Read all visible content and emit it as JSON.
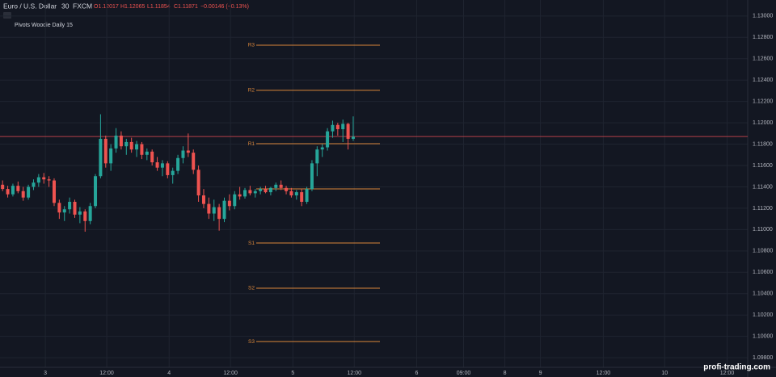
{
  "chart_data": {
    "type": "candlestick",
    "symbol": "Euro / U.S. Dollar",
    "interval": "30",
    "source": "FXCM",
    "quote": [
      "O1.12017",
      "H1.12065",
      "L1.11854",
      "C1.11871",
      "−0.00146 (−0.13%)"
    ],
    "indicator": "Pivots Woodie Daily 15",
    "watermark": "profi-trading.com",
    "up_color": "#26a69a",
    "down_color": "#ef5350",
    "pivot_color": "#d9863a",
    "last_color": "#b5404a",
    "last_price": 1.11871,
    "xlim": [
      0,
      145
    ],
    "ylim": [
      1.0971,
      1.1315
    ],
    "grid": true,
    "yticks": [
      {
        "value": 1.098,
        "label": "1.09800"
      },
      {
        "value": 1.1,
        "label": "1.10000"
      },
      {
        "value": 1.102,
        "label": "1.10200"
      },
      {
        "value": 1.104,
        "label": "1.10400"
      },
      {
        "value": 1.106,
        "label": "1.10600"
      },
      {
        "value": 1.108,
        "label": "1.10800"
      },
      {
        "value": 1.11,
        "label": "1.11000"
      },
      {
        "value": 1.112,
        "label": "1.11200"
      },
      {
        "value": 1.114,
        "label": "1.11400"
      },
      {
        "value": 1.116,
        "label": "1.11600"
      },
      {
        "value": 1.118,
        "label": "1.11800"
      },
      {
        "value": 1.12,
        "label": "1.12000"
      },
      {
        "value": 1.122,
        "label": "1.12200"
      },
      {
        "value": 1.124,
        "label": "1.12400"
      },
      {
        "value": 1.126,
        "label": "1.12600"
      },
      {
        "value": 1.128,
        "label": "1.12800"
      },
      {
        "value": 1.13,
        "label": "1.13000"
      }
    ],
    "xticks": [
      {
        "value": 8.8,
        "label": "3"
      },
      {
        "value": 20.7,
        "label": "12:00"
      },
      {
        "value": 32.8,
        "label": "4"
      },
      {
        "value": 44.7,
        "label": "12:00"
      },
      {
        "value": 56.8,
        "label": "5"
      },
      {
        "value": 68.7,
        "label": "12:00"
      },
      {
        "value": 80.8,
        "label": "6"
      },
      {
        "value": 89.9,
        "label": "09:00"
      },
      {
        "value": 97.9,
        "label": "8"
      },
      {
        "value": 104.8,
        "label": "9"
      },
      {
        "value": 117,
        "label": "12:00"
      },
      {
        "value": 128.9,
        "label": "10"
      },
      {
        "value": 141,
        "label": "12:00"
      }
    ],
    "pivots": [
      {
        "name": "R3",
        "value": 1.12727
      },
      {
        "name": "R2",
        "value": 1.12304
      },
      {
        "name": "R1",
        "value": 1.11804
      },
      {
        "name": null,
        "value": 1.11381
      },
      {
        "name": "S1",
        "value": 1.10874
      },
      {
        "name": "S2",
        "value": 1.10451
      },
      {
        "name": "S3",
        "value": 1.09951
      }
    ],
    "x": [
      0.5,
      1.5,
      2.5,
      3.5,
      4.5,
      5.5,
      6.5,
      7.5,
      8.5,
      9.5,
      10.5,
      11.5,
      12.5,
      13.5,
      14.5,
      15.5,
      16.5,
      17.5,
      18.5,
      19.5,
      20.5,
      21.5,
      22.5,
      23.5,
      24.5,
      25.5,
      26.5,
      27.5,
      28.5,
      29.5,
      30.5,
      31.5,
      32.5,
      33.5,
      34.5,
      35.5,
      36.5,
      37.5,
      38.5,
      39.5,
      40.5,
      41.5,
      42.5,
      43.5,
      44.5,
      45.5,
      46.5,
      47.5,
      48.5,
      49.5,
      50.5,
      51.5,
      52.5,
      53.5,
      54.5,
      55.5,
      56.5,
      57.5,
      58.5,
      59.5,
      60.5,
      61.5,
      62.5,
      63.5,
      64.5,
      65.5,
      66.5,
      67.5,
      68.5
    ],
    "ohlc": [
      [
        1.1142,
        1.1146,
        1.1136,
        1.1138
      ],
      [
        1.1138,
        1.1141,
        1.113,
        1.1133
      ],
      [
        1.1133,
        1.1143,
        1.1131,
        1.1141
      ],
      [
        1.1141,
        1.1145,
        1.1134,
        1.1136
      ],
      [
        1.1136,
        1.114,
        1.1127,
        1.113
      ],
      [
        1.113,
        1.1142,
        1.1128,
        1.114
      ],
      [
        1.114,
        1.1147,
        1.1137,
        1.1144
      ],
      [
        1.1144,
        1.1152,
        1.114,
        1.1149
      ],
      [
        1.1149,
        1.1153,
        1.1143,
        1.1147
      ],
      [
        1.1147,
        1.115,
        1.114,
        1.1146
      ],
      [
        1.1146,
        1.1148,
        1.1122,
        1.1125
      ],
      [
        1.1125,
        1.1128,
        1.111,
        1.1116
      ],
      [
        1.1116,
        1.1122,
        1.1108,
        1.1119
      ],
      [
        1.1119,
        1.113,
        1.1115,
        1.1126
      ],
      [
        1.1126,
        1.1128,
        1.1111,
        1.1114
      ],
      [
        1.1114,
        1.1121,
        1.1106,
        1.1117
      ],
      [
        1.1117,
        1.1119,
        1.1098,
        1.1108
      ],
      [
        1.1108,
        1.1125,
        1.1105,
        1.1122
      ],
      [
        1.1122,
        1.1152,
        1.112,
        1.115
      ],
      [
        1.115,
        1.1208,
        1.1148,
        1.1185
      ],
      [
        1.1185,
        1.1188,
        1.1158,
        1.1162
      ],
      [
        1.1162,
        1.118,
        1.1155,
        1.1176
      ],
      [
        1.1176,
        1.1195,
        1.1172,
        1.1188
      ],
      [
        1.1188,
        1.1192,
        1.1175,
        1.1178
      ],
      [
        1.1178,
        1.1185,
        1.117,
        1.1182
      ],
      [
        1.1182,
        1.1186,
        1.1172,
        1.1175
      ],
      [
        1.1175,
        1.1183,
        1.1168,
        1.118
      ],
      [
        1.118,
        1.1182,
        1.1166,
        1.117
      ],
      [
        1.117,
        1.1176,
        1.1165,
        1.1173
      ],
      [
        1.1173,
        1.1175,
        1.116,
        1.1163
      ],
      [
        1.1163,
        1.1168,
        1.1155,
        1.1158
      ],
      [
        1.1158,
        1.1165,
        1.115,
        1.1162
      ],
      [
        1.1162,
        1.1164,
        1.1148,
        1.1151
      ],
      [
        1.1151,
        1.1158,
        1.1143,
        1.1155
      ],
      [
        1.1155,
        1.117,
        1.1152,
        1.1167
      ],
      [
        1.1167,
        1.1178,
        1.1162,
        1.1174
      ],
      [
        1.1174,
        1.119,
        1.1168,
        1.1172
      ],
      [
        1.1172,
        1.1175,
        1.1152,
        1.1156
      ],
      [
        1.1156,
        1.116,
        1.1126,
        1.1132
      ],
      [
        1.1132,
        1.1138,
        1.112,
        1.1124
      ],
      [
        1.1124,
        1.113,
        1.111,
        1.1115
      ],
      [
        1.1115,
        1.1128,
        1.1108,
        1.1121
      ],
      [
        1.1121,
        1.1124,
        1.1099,
        1.111
      ],
      [
        1.111,
        1.113,
        1.1107,
        1.1127
      ],
      [
        1.1127,
        1.1133,
        1.1118,
        1.1122
      ],
      [
        1.1122,
        1.1136,
        1.1119,
        1.1133
      ],
      [
        1.1133,
        1.114,
        1.1128,
        1.1131
      ],
      [
        1.1131,
        1.1139,
        1.1129,
        1.1137
      ],
      [
        1.1137,
        1.1141,
        1.1132,
        1.1134
      ],
      [
        1.1134,
        1.1138,
        1.113,
        1.1136
      ],
      [
        1.1136,
        1.114,
        1.1133,
        1.1138
      ],
      [
        1.1138,
        1.1141,
        1.1134,
        1.1135
      ],
      [
        1.1135,
        1.114,
        1.1132,
        1.1139
      ],
      [
        1.1139,
        1.1144,
        1.1136,
        1.1142
      ],
      [
        1.1142,
        1.1146,
        1.1137,
        1.1139
      ],
      [
        1.1139,
        1.1141,
        1.1133,
        1.1136
      ],
      [
        1.1136,
        1.1139,
        1.113,
        1.1132
      ],
      [
        1.1132,
        1.1137,
        1.1128,
        1.1135
      ],
      [
        1.1135,
        1.1138,
        1.1122,
        1.1126
      ],
      [
        1.1126,
        1.114,
        1.1124,
        1.1138
      ],
      [
        1.1138,
        1.1165,
        1.1136,
        1.1162
      ],
      [
        1.1162,
        1.1178,
        1.115,
        1.1175
      ],
      [
        1.1175,
        1.118,
        1.1168,
        1.1177
      ],
      [
        1.1177,
        1.1195,
        1.1174,
        1.1192
      ],
      [
        1.1192,
        1.1202,
        1.1186,
        1.1198
      ],
      [
        1.1198,
        1.12,
        1.1188,
        1.1194
      ],
      [
        1.1194,
        1.1203,
        1.1182,
        1.1199
      ],
      [
        1.1199,
        1.12,
        1.1175,
        1.1185
      ],
      [
        1.1185,
        1.1206,
        1.1183,
        1.1187
      ]
    ]
  }
}
